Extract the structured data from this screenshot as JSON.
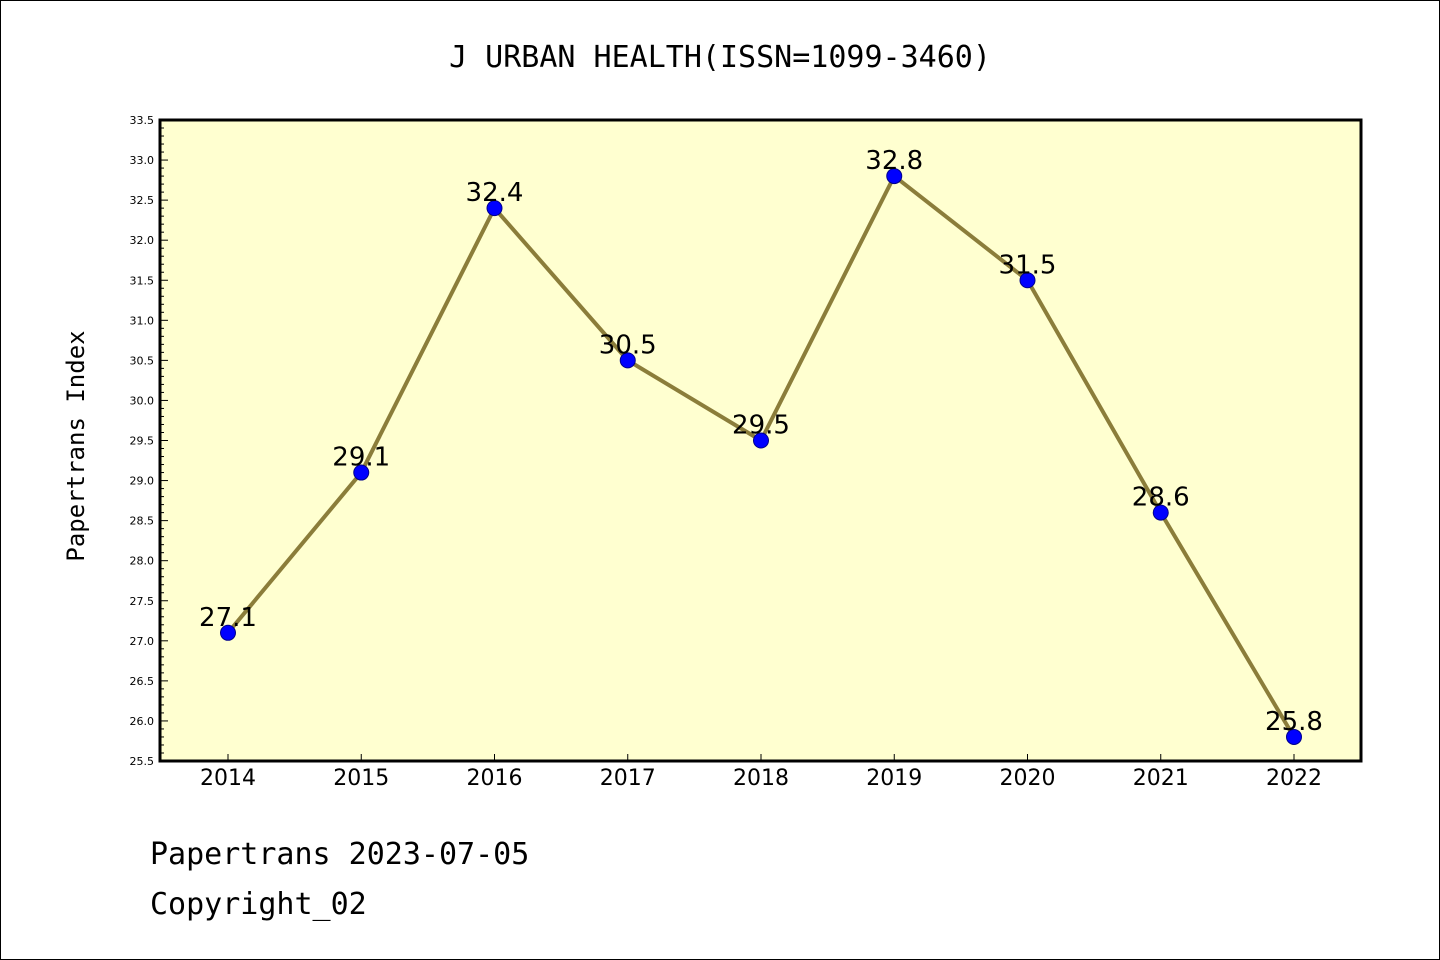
{
  "chart_data": {
    "type": "line",
    "title": "J URBAN HEALTH(ISSN=1099-3460)",
    "ylabel": "Papertrans Index",
    "xlabel": "",
    "categories": [
      "2014",
      "2015",
      "2016",
      "2017",
      "2018",
      "2019",
      "2020",
      "2021",
      "2022"
    ],
    "series": [
      {
        "values": [
          27.1,
          29.1,
          32.4,
          30.5,
          29.5,
          32.8,
          31.5,
          28.6,
          25.8
        ],
        "labels": [
          "27.1",
          "29.1",
          "32.4",
          "30.5",
          "29.5",
          "32.8",
          "31.5",
          "28.6",
          "25.8"
        ]
      }
    ],
    "ylim": [
      25.5,
      33.5
    ],
    "yticks": [
      "25.5",
      "26.0",
      "26.5",
      "27.0",
      "27.5",
      "28.0",
      "28.5",
      "29.0",
      "29.5",
      "30.0",
      "30.5",
      "31.0",
      "31.5",
      "32.0",
      "32.5",
      "33.0",
      "33.5"
    ],
    "grid": false,
    "colors": {
      "plot_background": "#ffffd0",
      "line": "#8b7d3a",
      "marker": "#0000ff"
    }
  },
  "footer": {
    "line1": "Papertrans 2023-07-05",
    "line2": "Copyright_02"
  }
}
